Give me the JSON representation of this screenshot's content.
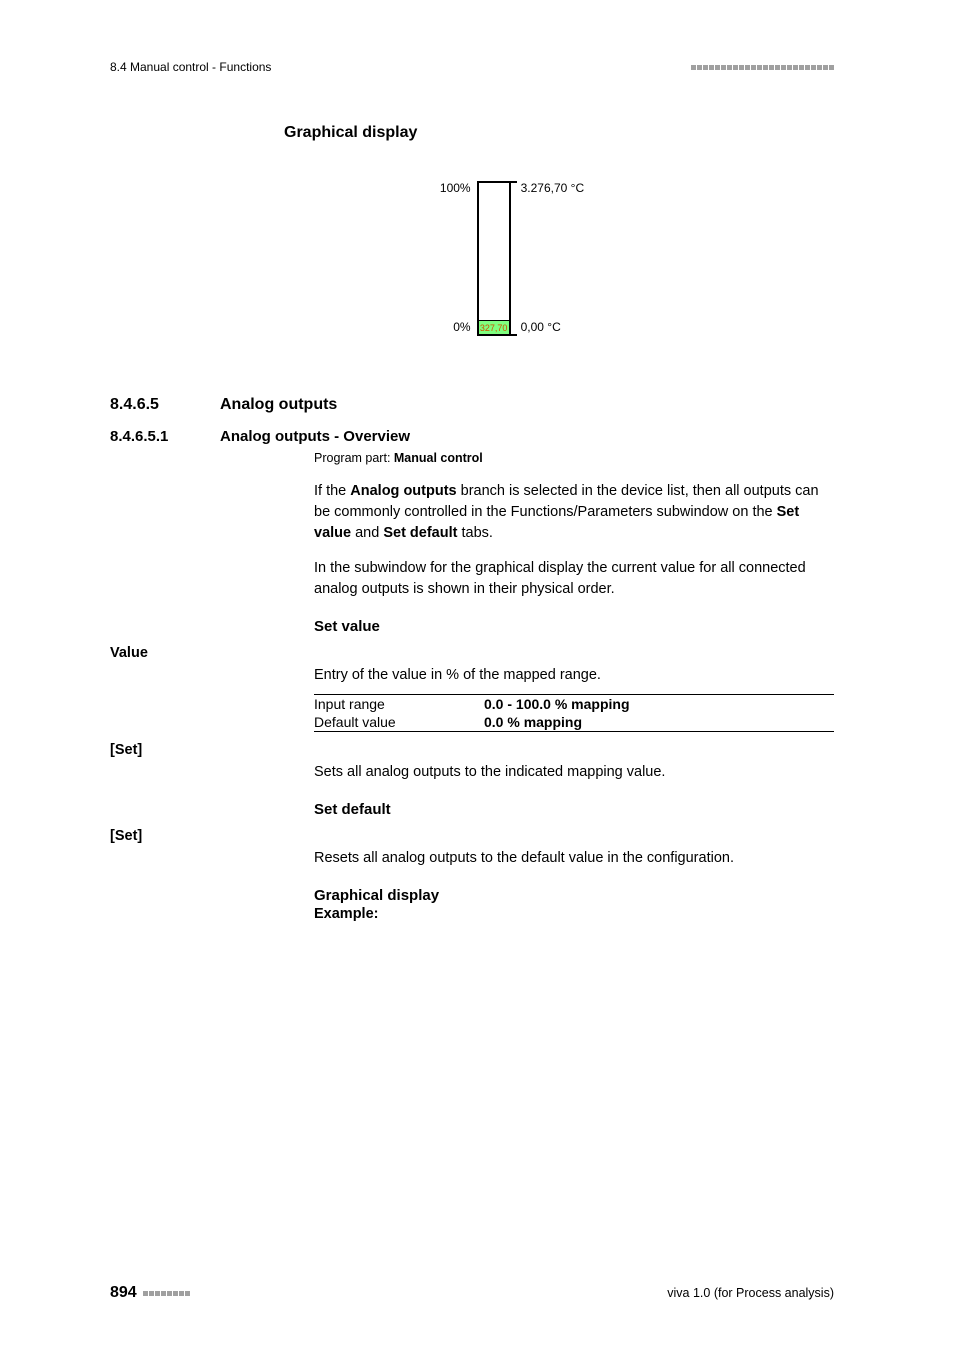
{
  "header": {
    "left": "8.4 Manual control - Functions",
    "dash_count": 24
  },
  "heading_graphical_1": "Graphical display",
  "chart": {
    "pct_top": "100%",
    "pct_bot": "0%",
    "temp_top": "3.276,70 °C",
    "temp_bot": "0,00 °C",
    "bar_value_label": "327,70",
    "fill_percent": 9,
    "border_color": "#000000",
    "fill_color": "#7fff7f",
    "value_text_color": "#cc5500"
  },
  "section_845": {
    "num": "8.4.6.5",
    "title": "Analog outputs"
  },
  "section_8451": {
    "num": "8.4.6.5.1",
    "title": "Analog outputs - Overview"
  },
  "program_part_label": "Program part: ",
  "program_part_value": "Manual control",
  "para1_pre": "If the ",
  "para1_b1": "Analog outputs",
  "para1_mid1": " branch is selected in the device list, then all outputs can be commonly controlled in the Functions/Parameters subwindow on the ",
  "para1_b2": "Set value",
  "para1_mid2": " and ",
  "para1_b3": "Set default",
  "para1_post": " tabs.",
  "para2": "In the subwindow for the graphical display the current value for all connected analog outputs is shown in their physical order.",
  "h_setvalue": "Set value",
  "label_value": "Value",
  "value_desc": "Entry of the value in % of the mapped range.",
  "table": {
    "rows": [
      {
        "c1": "Input range",
        "c2": "0.0 - 100.0 % mapping"
      },
      {
        "c1": "Default value",
        "c2": "0.0 % mapping"
      }
    ]
  },
  "label_set1": "[Set]",
  "set1_desc": "Sets all analog outputs to the indicated mapping value.",
  "h_setdefault": "Set default",
  "label_set2": "[Set]",
  "set2_desc": "Resets all analog outputs to the default value in the configuration.",
  "h_graphical_2": "Graphical display",
  "example_label": "Example:",
  "footer": {
    "page": "894",
    "dash_count": 8,
    "right": "viva 1.0 (for Process analysis)"
  }
}
